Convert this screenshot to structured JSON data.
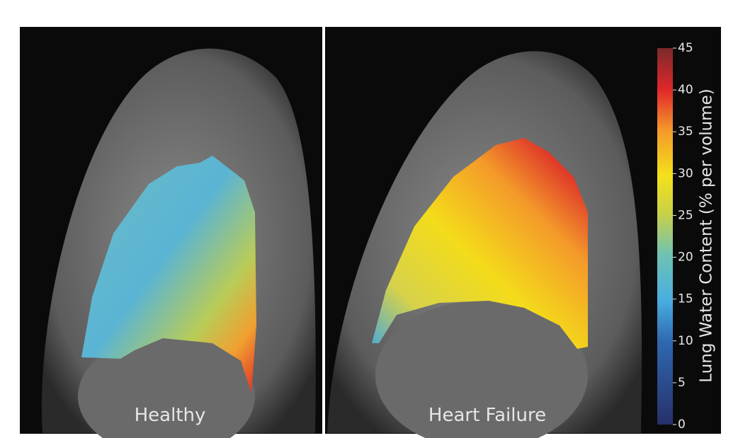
{
  "panels": [
    {
      "label": "Healthy"
    },
    {
      "label": "Heart Failure"
    }
  ],
  "colorbar": {
    "label": "Lung Water Content (% per volume)",
    "lim": [
      0,
      45
    ],
    "ticks": [
      0,
      5,
      10,
      15,
      20,
      25,
      30,
      35,
      40,
      45
    ]
  }
}
